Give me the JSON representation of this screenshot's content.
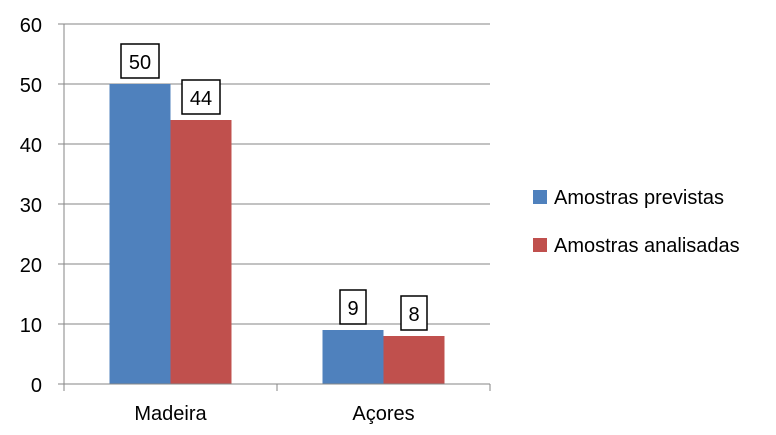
{
  "chart_data": {
    "type": "bar",
    "categories": [
      "Madeira",
      "Açores"
    ],
    "series": [
      {
        "name": "Amostras previstas",
        "values": [
          50,
          9
        ],
        "color": "#4f81bd"
      },
      {
        "name": "Amostras analisadas",
        "values": [
          44,
          8
        ],
        "color": "#c0504d"
      }
    ],
    "title": "",
    "xlabel": "",
    "ylabel": "",
    "ylim": [
      0,
      60
    ],
    "yticks": [
      0,
      10,
      20,
      30,
      40,
      50,
      60
    ],
    "grid": true,
    "legend": "right",
    "data_labels": true
  }
}
